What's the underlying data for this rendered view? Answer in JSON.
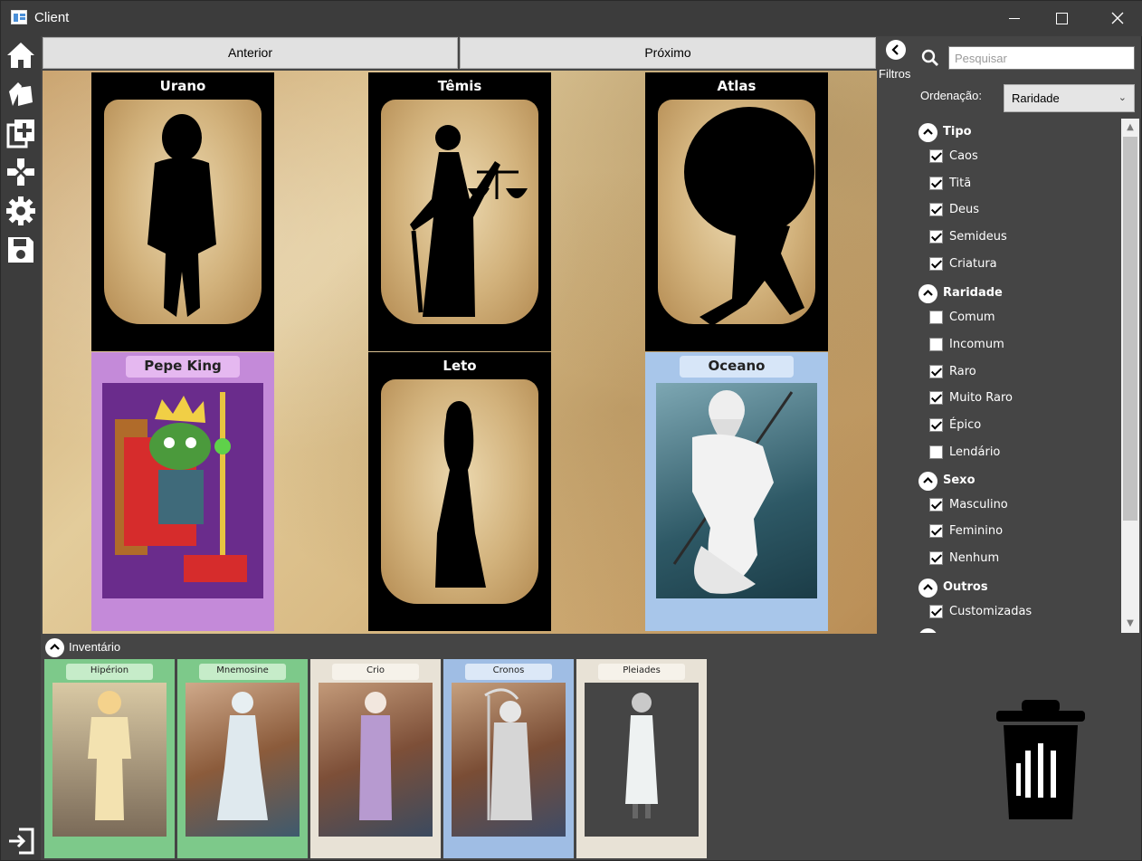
{
  "window": {
    "title": "Client"
  },
  "nav": {
    "prev_label": "Anterior",
    "next_label": "Próximo"
  },
  "board": {
    "cards": [
      {
        "name": "Urano",
        "state": "locked"
      },
      {
        "name": "Têmis",
        "state": "locked"
      },
      {
        "name": "Atlas",
        "state": "locked"
      },
      {
        "name": "Pepe King",
        "state": "owned"
      },
      {
        "name": "Leto",
        "state": "locked"
      },
      {
        "name": "Oceano",
        "state": "owned"
      }
    ]
  },
  "filters": {
    "toggle_label": "Filtros",
    "search_placeholder": "Pesquisar",
    "sort_label": "Ordenação:",
    "sort_value": "Raridade",
    "groups": [
      {
        "label": "Tipo",
        "options": [
          {
            "label": "Caos",
            "checked": true
          },
          {
            "label": "Titã",
            "checked": true
          },
          {
            "label": "Deus",
            "checked": true
          },
          {
            "label": "Semideus",
            "checked": true
          },
          {
            "label": "Criatura",
            "checked": true
          }
        ]
      },
      {
        "label": "Raridade",
        "options": [
          {
            "label": "Comum",
            "checked": false
          },
          {
            "label": "Incomum",
            "checked": false
          },
          {
            "label": "Raro",
            "checked": true
          },
          {
            "label": "Muito Raro",
            "checked": true
          },
          {
            "label": "Épico",
            "checked": true
          },
          {
            "label": "Lendário",
            "checked": false
          }
        ]
      },
      {
        "label": "Sexo",
        "options": [
          {
            "label": "Masculino",
            "checked": true
          },
          {
            "label": "Feminino",
            "checked": true
          },
          {
            "label": "Nenhum",
            "checked": true
          }
        ]
      },
      {
        "label": "Outros",
        "options": [
          {
            "label": "Customizadas",
            "checked": true
          }
        ]
      }
    ]
  },
  "inventory": {
    "label": "Inventário",
    "cards": [
      {
        "name": "Hipérion",
        "frame_color": "#7dc98a"
      },
      {
        "name": "Mnemosine",
        "frame_color": "#7dc98a"
      },
      {
        "name": "Crio",
        "frame_color": "#e8e2d6"
      },
      {
        "name": "Cronos",
        "frame_color": "#9fbde4"
      },
      {
        "name": "Pleiades",
        "frame_color": "#e8e2d6"
      }
    ]
  },
  "colors": {
    "window_bg": "#454545",
    "titlebar_bg": "#3c3c3c",
    "button_bg": "#e1e1e1",
    "pepe_frame": "#c48ad9",
    "oceano_frame": "#a8c6ea"
  },
  "icons": {
    "sidebar": [
      "home-icon",
      "cards-icon",
      "add-deck-icon",
      "gamepad-icon",
      "gear-icon",
      "save-icon"
    ],
    "bottom": [
      "logout-icon",
      "trash-icon"
    ]
  }
}
